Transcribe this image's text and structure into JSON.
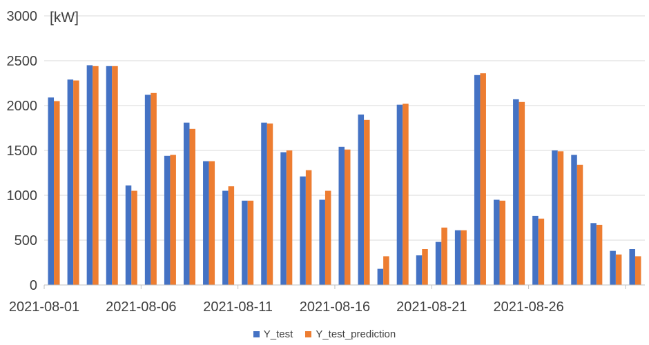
{
  "chart_data": {
    "type": "bar",
    "unit_label": "[kW]",
    "ylim": [
      0,
      3000
    ],
    "y_ticks": [
      "0",
      "500",
      "1000",
      "1500",
      "2000",
      "2500",
      "3000"
    ],
    "grid": true,
    "legend_position": "bottom",
    "x_tick_labels": [
      "2021-08-01",
      "2021-08-06",
      "2021-08-11",
      "2021-08-16",
      "2021-08-21",
      "2021-08-26"
    ],
    "categories": [
      "2021-08-01",
      "2021-08-02",
      "2021-08-03",
      "2021-08-04",
      "2021-08-05",
      "2021-08-06",
      "2021-08-07",
      "2021-08-08",
      "2021-08-09",
      "2021-08-10",
      "2021-08-11",
      "2021-08-12",
      "2021-08-13",
      "2021-08-14",
      "2021-08-15",
      "2021-08-16",
      "2021-08-17",
      "2021-08-18",
      "2021-08-19",
      "2021-08-20",
      "2021-08-21",
      "2021-08-22",
      "2021-08-23",
      "2021-08-24",
      "2021-08-25",
      "2021-08-26",
      "2021-08-27",
      "2021-08-28",
      "2021-08-29",
      "2021-08-30",
      "2021-08-31"
    ],
    "series": [
      {
        "name": "Y_test",
        "color": "#4472C4",
        "values": [
          2090,
          2290,
          2450,
          2440,
          1110,
          2120,
          1440,
          1810,
          1380,
          1050,
          940,
          1810,
          1480,
          1210,
          950,
          1540,
          1900,
          180,
          2010,
          330,
          480,
          610,
          2340,
          950,
          2070,
          770,
          1500,
          1450,
          690,
          380,
          400
        ]
      },
      {
        "name": "Y_test_prediction",
        "color": "#ED7D31",
        "values": [
          2050,
          2280,
          2440,
          2440,
          1050,
          2140,
          1450,
          1740,
          1380,
          1100,
          940,
          1800,
          1500,
          1280,
          1050,
          1510,
          1840,
          320,
          2020,
          400,
          640,
          610,
          2360,
          940,
          2040,
          740,
          1490,
          1340,
          670,
          340,
          320
        ]
      }
    ]
  }
}
